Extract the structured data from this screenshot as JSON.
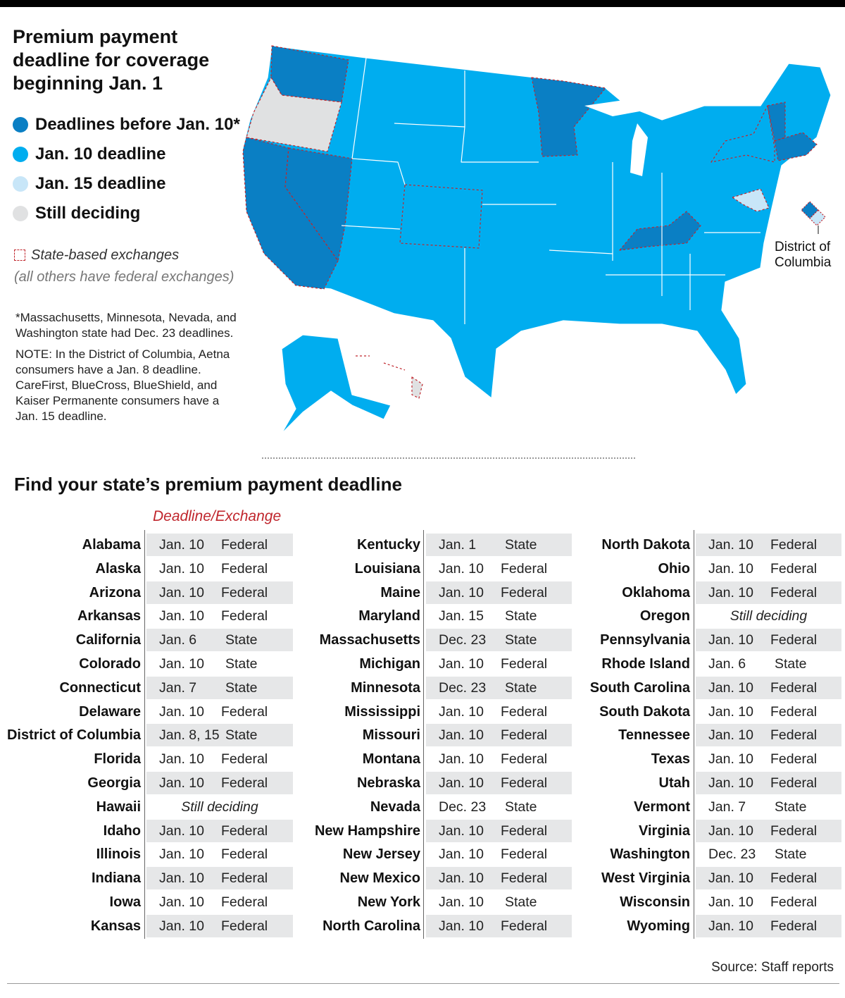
{
  "title": "Premium payment deadline for coverage beginning Jan. 1",
  "legend": [
    {
      "label": "Deadlines before Jan. 10*",
      "color": "#0a7fc4"
    },
    {
      "label": "Jan. 10 deadline",
      "color": "#00adef"
    },
    {
      "label": "Jan. 15 deadline",
      "color": "#c8e6f8"
    },
    {
      "label": "Still deciding",
      "color": "#e0e1e2"
    }
  ],
  "exchange_note": {
    "label": "State-based exchanges",
    "others": "(all others have federal exchanges)",
    "border_color": "#c0262d"
  },
  "notes": {
    "footnote": "*Massachusetts, Minnesota, Nevada, and Washington state had Dec. 23 deadlines.",
    "dc_note": "NOTE: In the District of Columbia, Aetna consumers have a Jan. 8 deadline. CareFirst, BlueCross, BlueShield, and Kaiser Permanente consumers have a Jan. 15 deadline."
  },
  "map": {
    "dc_label": "District of Columbia",
    "colors": {
      "before": "#0a7fc4",
      "jan10": "#00adef",
      "jan15": "#c8e6f8",
      "undecided": "#e0e1e2",
      "border": "#ffffff"
    }
  },
  "table": {
    "title": "Find your state’s premium payment deadline",
    "column_header": "Deadline/Exchange",
    "columns": [
      [
        {
          "state": "Alabama",
          "deadline": "Jan. 10",
          "exchange": "Federal"
        },
        {
          "state": "Alaska",
          "deadline": "Jan. 10",
          "exchange": "Federal"
        },
        {
          "state": "Arizona",
          "deadline": "Jan. 10",
          "exchange": "Federal"
        },
        {
          "state": "Arkansas",
          "deadline": "Jan. 10",
          "exchange": "Federal"
        },
        {
          "state": "California",
          "deadline": "Jan. 6",
          "exchange": "State"
        },
        {
          "state": "Colorado",
          "deadline": "Jan. 10",
          "exchange": "State"
        },
        {
          "state": "Connecticut",
          "deadline": "Jan. 7",
          "exchange": "State"
        },
        {
          "state": "Delaware",
          "deadline": "Jan. 10",
          "exchange": "Federal"
        },
        {
          "state": "District of Columbia",
          "deadline": "Jan. 8, 15",
          "exchange": "State"
        },
        {
          "state": "Florida",
          "deadline": "Jan. 10",
          "exchange": "Federal"
        },
        {
          "state": "Georgia",
          "deadline": "Jan. 10",
          "exchange": "Federal"
        },
        {
          "state": "Hawaii",
          "deadline": "",
          "exchange": "",
          "status": "Still deciding"
        },
        {
          "state": "Idaho",
          "deadline": "Jan. 10",
          "exchange": "Federal"
        },
        {
          "state": "Illinois",
          "deadline": "Jan. 10",
          "exchange": "Federal"
        },
        {
          "state": "Indiana",
          "deadline": "Jan. 10",
          "exchange": "Federal"
        },
        {
          "state": "Iowa",
          "deadline": "Jan. 10",
          "exchange": "Federal"
        },
        {
          "state": "Kansas",
          "deadline": "Jan. 10",
          "exchange": "Federal"
        }
      ],
      [
        {
          "state": "Kentucky",
          "deadline": "Jan. 1",
          "exchange": "State"
        },
        {
          "state": "Louisiana",
          "deadline": "Jan. 10",
          "exchange": "Federal"
        },
        {
          "state": "Maine",
          "deadline": "Jan. 10",
          "exchange": "Federal"
        },
        {
          "state": "Maryland",
          "deadline": "Jan. 15",
          "exchange": "State"
        },
        {
          "state": "Massachusetts",
          "deadline": "Dec. 23",
          "exchange": "State"
        },
        {
          "state": "Michigan",
          "deadline": "Jan. 10",
          "exchange": "Federal"
        },
        {
          "state": "Minnesota",
          "deadline": "Dec. 23",
          "exchange": "State"
        },
        {
          "state": "Mississippi",
          "deadline": "Jan. 10",
          "exchange": "Federal"
        },
        {
          "state": "Missouri",
          "deadline": "Jan. 10",
          "exchange": "Federal"
        },
        {
          "state": "Montana",
          "deadline": "Jan. 10",
          "exchange": "Federal"
        },
        {
          "state": "Nebraska",
          "deadline": "Jan. 10",
          "exchange": "Federal"
        },
        {
          "state": "Nevada",
          "deadline": "Dec. 23",
          "exchange": "State"
        },
        {
          "state": "New Hampshire",
          "deadline": "Jan. 10",
          "exchange": "Federal"
        },
        {
          "state": "New Jersey",
          "deadline": "Jan. 10",
          "exchange": "Federal"
        },
        {
          "state": "New Mexico",
          "deadline": "Jan. 10",
          "exchange": "Federal"
        },
        {
          "state": "New York",
          "deadline": "Jan. 10",
          "exchange": "State"
        },
        {
          "state": "North Carolina",
          "deadline": "Jan. 10",
          "exchange": "Federal"
        }
      ],
      [
        {
          "state": "North Dakota",
          "deadline": "Jan. 10",
          "exchange": "Federal"
        },
        {
          "state": "Ohio",
          "deadline": "Jan. 10",
          "exchange": "Federal"
        },
        {
          "state": "Oklahoma",
          "deadline": "Jan. 10",
          "exchange": "Federal"
        },
        {
          "state": "Oregon",
          "deadline": "",
          "exchange": "",
          "status": "Still deciding"
        },
        {
          "state": "Pennsylvania",
          "deadline": "Jan. 10",
          "exchange": "Federal"
        },
        {
          "state": "Rhode Island",
          "deadline": "Jan. 6",
          "exchange": "State"
        },
        {
          "state": "South Carolina",
          "deadline": "Jan. 10",
          "exchange": "Federal"
        },
        {
          "state": "South Dakota",
          "deadline": "Jan. 10",
          "exchange": "Federal"
        },
        {
          "state": "Tennessee",
          "deadline": "Jan. 10",
          "exchange": "Federal"
        },
        {
          "state": "Texas",
          "deadline": "Jan. 10",
          "exchange": "Federal"
        },
        {
          "state": "Utah",
          "deadline": "Jan. 10",
          "exchange": "Federal"
        },
        {
          "state": "Vermont",
          "deadline": "Jan. 7",
          "exchange": "State"
        },
        {
          "state": "Virginia",
          "deadline": "Jan. 10",
          "exchange": "Federal"
        },
        {
          "state": "Washington",
          "deadline": "Dec. 23",
          "exchange": "State"
        },
        {
          "state": "West Virginia",
          "deadline": "Jan. 10",
          "exchange": "Federal"
        },
        {
          "state": "Wisconsin",
          "deadline": "Jan. 10",
          "exchange": "Federal"
        },
        {
          "state": "Wyoming",
          "deadline": "Jan. 10",
          "exchange": "Federal"
        }
      ]
    ]
  },
  "source": "Source: Staff reports"
}
